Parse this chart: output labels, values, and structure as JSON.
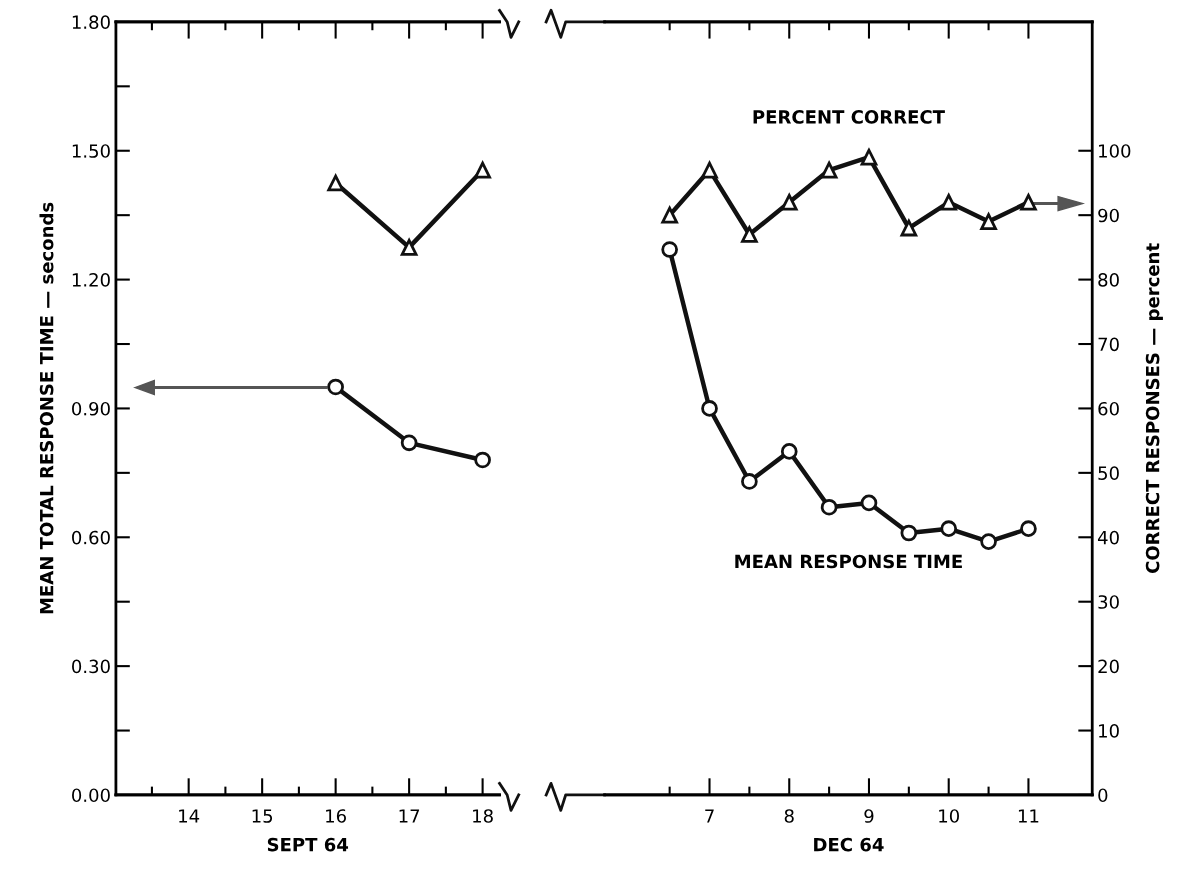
{
  "chart_data": [
    {
      "type": "line",
      "xlabel": "SEPT 64",
      "ylabel": "MEAN TOTAL RESPONSE TIME — seconds",
      "categories": [
        null,
        "14",
        null,
        "15",
        null,
        "16",
        null,
        "17",
        null,
        "18"
      ],
      "series": [
        {
          "color": "#111111",
          "marker": "circle",
          "values": [
            null,
            null,
            null,
            null,
            null,
            0.95,
            null,
            0.82,
            null,
            0.78
          ]
        },
        {
          "color": "#111111",
          "marker": "triangle",
          "axis": "y2",
          "values": [
            null,
            null,
            null,
            null,
            null,
            95,
            null,
            85,
            null,
            97
          ]
        }
      ],
      "ylim": [
        0,
        1.8
      ],
      "yticks": [
        {
          "value": 0,
          "label": "0.00"
        },
        {
          "value": 0.15,
          "label": null
        },
        {
          "value": 0.3,
          "label": "0.30"
        },
        {
          "value": 0.45,
          "label": null
        },
        {
          "value": 0.6,
          "label": "0.60"
        },
        {
          "value": 0.75,
          "label": null
        },
        {
          "value": 0.9,
          "label": "0.90"
        },
        {
          "value": 1.05,
          "label": null
        },
        {
          "value": 1.2,
          "label": "1.20"
        },
        {
          "value": 1.35,
          "label": null
        },
        {
          "value": 1.5,
          "label": "1.50"
        },
        {
          "value": 1.65,
          "label": null
        },
        {
          "value": 1.8,
          "label": "1.80"
        }
      ],
      "y2lim": [
        0,
        120
      ],
      "tick_labels": [
        "x",
        "y"
      ],
      "grid": false
    },
    {
      "type": "line",
      "xlabel": "DEC 64",
      "y2label": "CORRECT RESPONSES — percent",
      "categories": [
        null,
        "7",
        null,
        "8",
        null,
        "9",
        null,
        "10",
        null,
        "11"
      ],
      "series": [
        {
          "color": "#111111",
          "marker": "circle",
          "values": [
            1.27,
            0.9,
            0.73,
            0.8,
            0.67,
            0.68,
            0.61,
            0.62,
            0.59,
            0.62
          ]
        },
        {
          "color": "#111111",
          "marker": "triangle",
          "axis": "y2",
          "values": [
            90,
            97,
            87,
            92,
            97,
            99,
            88,
            92,
            89,
            92
          ]
        }
      ],
      "ylim": [
        0,
        1.8
      ],
      "y2lim": [
        0,
        120
      ],
      "y2ticks": [
        0,
        10,
        20,
        30,
        40,
        50,
        60,
        70,
        80,
        90,
        100
      ],
      "tick_labels": [
        "x",
        "y2"
      ],
      "grid": false,
      "annotations": [
        "PERCENT CORRECT",
        "MEAN RESPONSE TIME"
      ]
    }
  ]
}
